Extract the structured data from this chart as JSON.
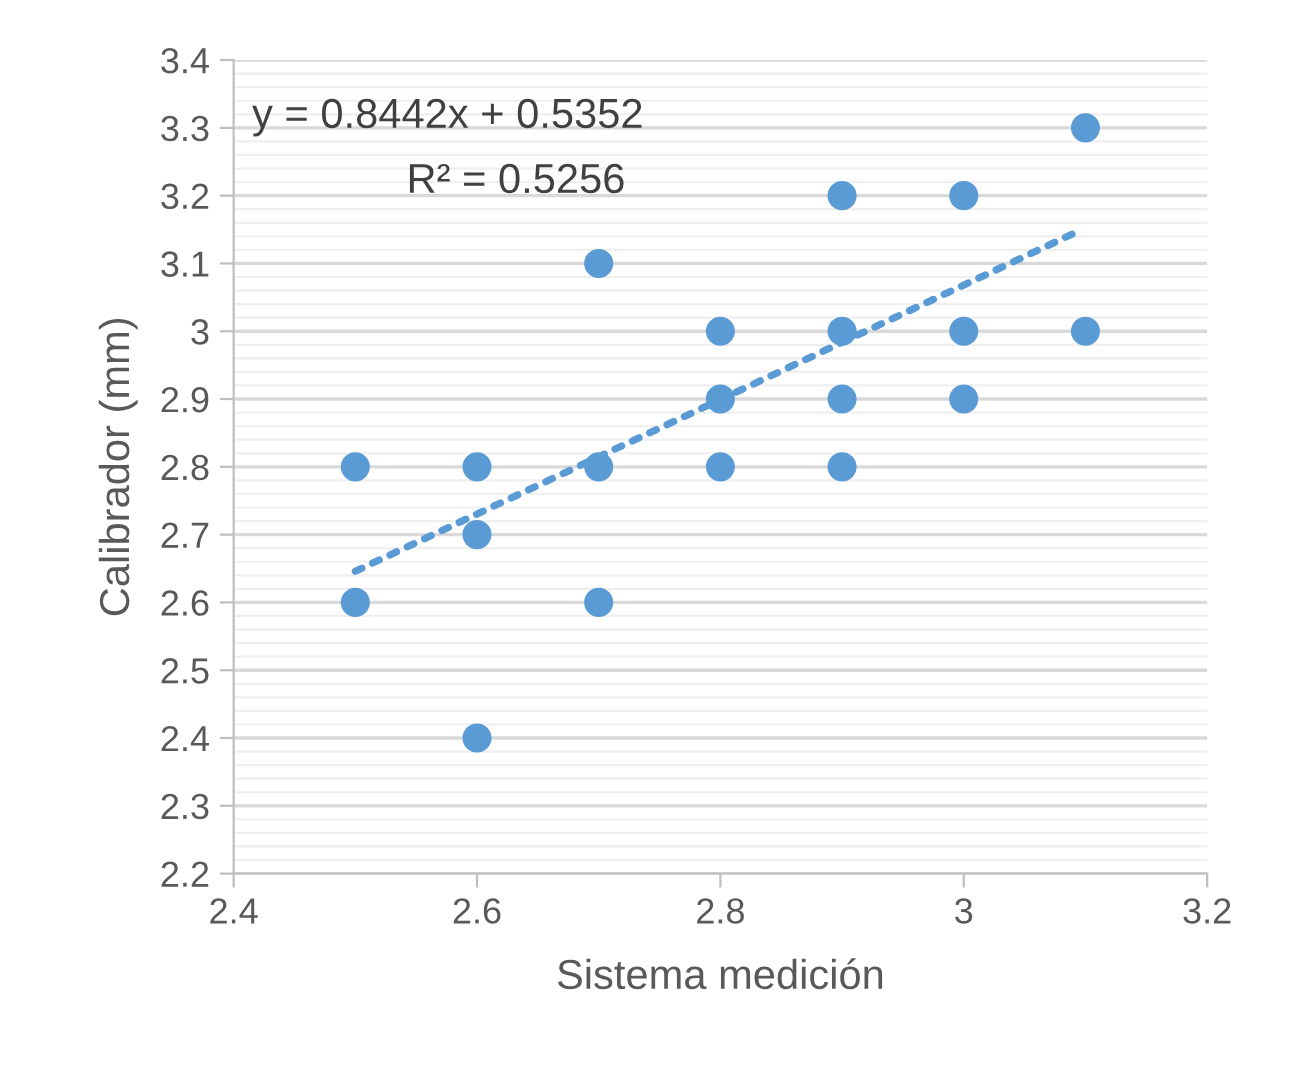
{
  "chart_data": {
    "type": "scatter",
    "xlabel": "Sistema medición",
    "ylabel": "Calibrador (mm)",
    "series": [
      {
        "color": "#5b9bd5",
        "marker": "circle",
        "x": [
          2.5,
          2.5,
          2.6,
          2.6,
          2.6,
          2.7,
          2.7,
          2.7,
          2.8,
          2.8,
          2.8,
          2.9,
          2.9,
          2.9,
          2.9,
          3,
          3,
          3,
          3.1,
          3.1
        ],
        "values": [
          2.8,
          2.6,
          2.8,
          2.7,
          2.4,
          3.1,
          2.8,
          2.6,
          3,
          2.9,
          2.8,
          3.2,
          3,
          2.9,
          2.8,
          3.2,
          3,
          2.9,
          3.3,
          3
        ]
      },
      {
        "type": "line",
        "color": "#5b9bd5",
        "line_style": "dotted",
        "x": [
          2.5,
          3.09
        ],
        "values": [
          2.646,
          3.144
        ]
      }
    ],
    "annotations": [
      "y = 0.8442x + 0.5352",
      "R² = 0.5256"
    ],
    "xlim": [
      2.4,
      3.2
    ],
    "xticks": [
      2.4,
      2.6,
      2.8,
      3,
      3.2
    ],
    "ylim": [
      2.2,
      3.4
    ],
    "yticks": [
      2.2,
      2.3,
      2.4,
      2.5,
      2.6,
      2.7,
      2.8,
      2.9,
      3,
      3.1,
      3.2,
      3.3,
      3.4
    ],
    "grid": "y"
  }
}
